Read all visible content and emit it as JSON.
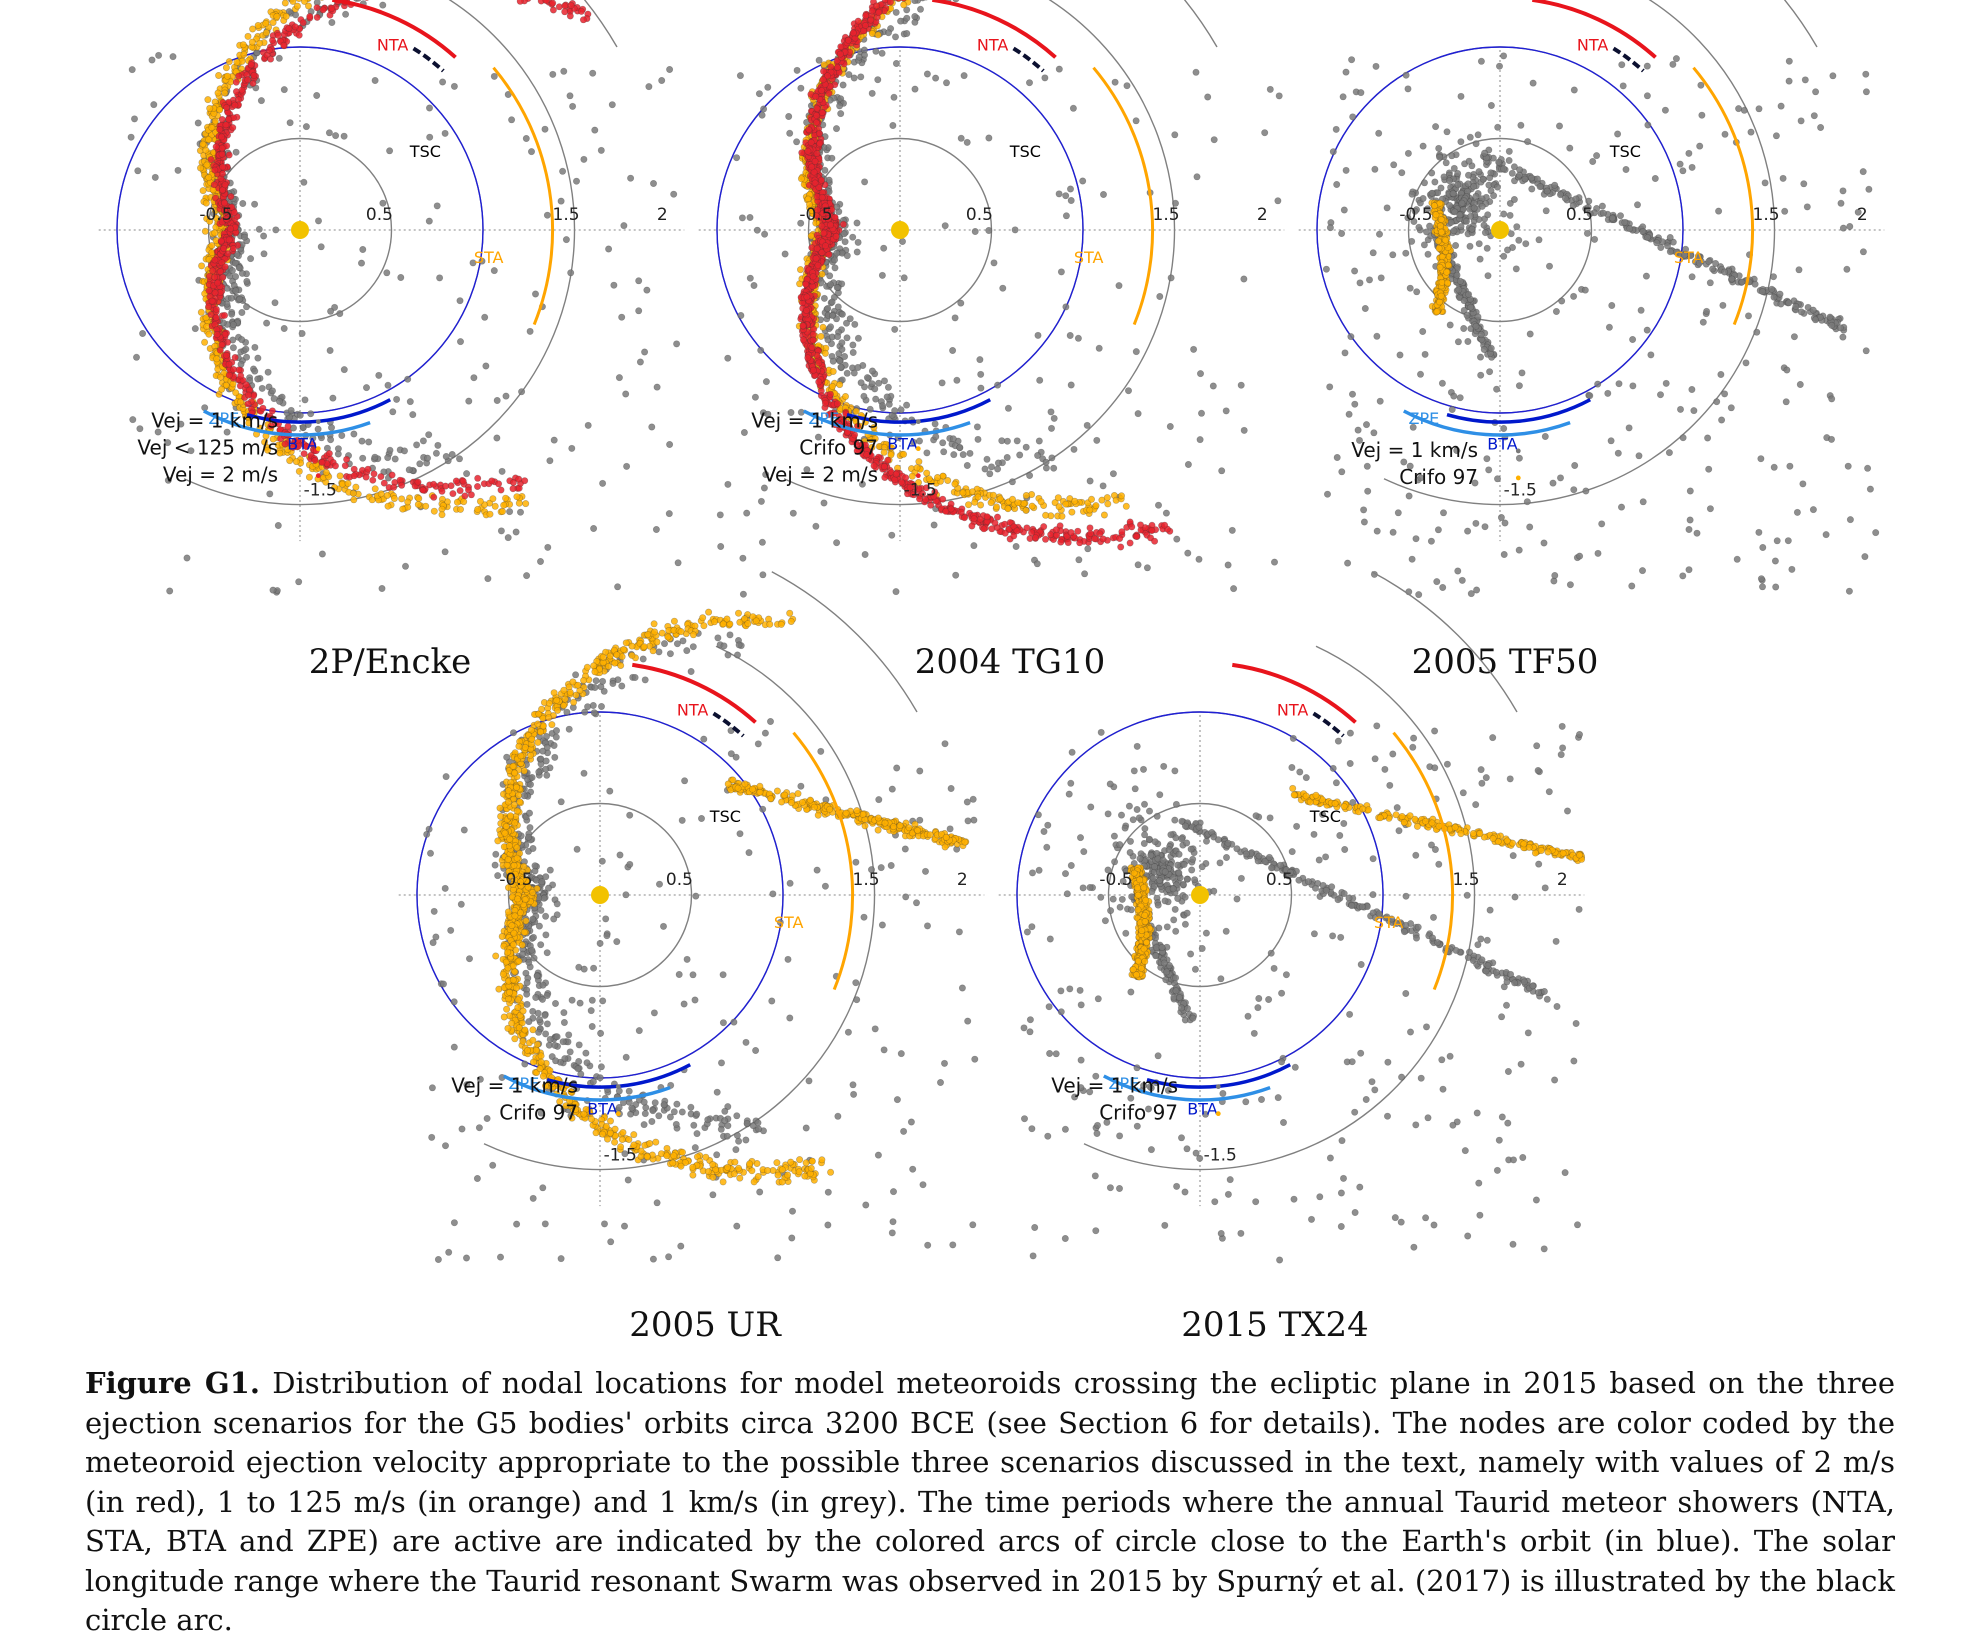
{
  "figure": {
    "label": "Figure G1.",
    "caption": "Distribution of nodal locations for model meteoroids crossing the ecliptic plane in 2015 based on the three ejection scenarios for the G5 bodies' orbits circa 3200 BCE (see Section 6 for details). The nodes are color coded by the meteoroid ejection velocity appropriate to the possible three scenarios discussed in the text, namely with values of 2 m/s (in red), 1 to 125 m/s (in orange) and 1 km/s (in grey). The time periods where the annual Taurid meteor showers (NTA, STA, BTA and ZPE) are active are indicated by the colored arcs of circle close to the Earth's orbit (in blue). The solar longitude range where the Taurid resonant Swarm was observed in 2015 by Spurný et al. (2017) is illustrated by the black circle arc."
  },
  "colors": {
    "earth_orbit": "#1f1fd6",
    "ring": "#808080",
    "nta": "#e8141c",
    "sta": "#ffa500",
    "bta": "#0018cc",
    "zpe": "#2e8fe6",
    "tsc": "#0b1030",
    "sun": "#f2c200",
    "red_points": "#e8232e",
    "orange_points": "#ffb000",
    "grey_points": "#7a7a7a"
  },
  "chart_data": [
    {
      "type": "scatter",
      "title": "2P/Encke",
      "tick_labels": [
        "-0.5",
        "0.5",
        "1.5",
        "2",
        "-1.5"
      ],
      "arc_labels": {
        "nta": "NTA",
        "sta": "STA",
        "tsc": "TSC",
        "zpe": "ZPE",
        "bta": "BTA"
      },
      "legend": [
        "Vej = 1 km/s",
        "Vej < 125 m/s",
        "Vej = 2 m/s"
      ],
      "series": [
        {
          "name": "Vej = 1 km/s",
          "color": "grey",
          "shape": "spiral-wide"
        },
        {
          "name": "Vej < 125 m/s",
          "color": "orange",
          "shape": "spiral"
        },
        {
          "name": "Vej = 2 m/s",
          "color": "red",
          "shape": "spiral"
        }
      ]
    },
    {
      "type": "scatter",
      "title": "2004 TG10",
      "tick_labels": [
        "-0.5",
        "0.5",
        "1.5",
        "2",
        "-1.5"
      ],
      "arc_labels": {
        "nta": "NTA",
        "sta": "STA",
        "tsc": "TSC",
        "zpe": "ZPE",
        "bta": "BTA"
      },
      "legend": [
        "Vej = 1 km/s",
        "Crifo 97",
        "Vej = 2 m/s"
      ],
      "series": [
        {
          "name": "Vej = 1 km/s",
          "color": "grey",
          "shape": "spiral-wide"
        },
        {
          "name": "Crifo 97",
          "color": "orange",
          "shape": "spiral"
        },
        {
          "name": "Vej = 2 m/s",
          "color": "red",
          "shape": "spiral"
        }
      ]
    },
    {
      "type": "scatter",
      "title": "2005 TF50",
      "tick_labels": [
        "-0.5",
        "0.5",
        "1.5",
        "2",
        "-1.5"
      ],
      "arc_labels": {
        "nta": "NTA",
        "sta": "STA",
        "tsc": "TSC",
        "zpe": "ZPE",
        "bta": "BTA"
      },
      "legend": [
        "Vej = 1 km/s",
        "Crifo 97"
      ],
      "series": [
        {
          "name": "Vej = 1 km/s",
          "color": "grey",
          "shape": "branch"
        },
        {
          "name": "Crifo 97",
          "color": "orange",
          "shape": "clump"
        }
      ]
    },
    {
      "type": "scatter",
      "title": "2005 UR",
      "tick_labels": [
        "-0.5",
        "0.5",
        "1.5",
        "2",
        "-1.5"
      ],
      "arc_labels": {
        "nta": "NTA",
        "sta": "STA",
        "tsc": "TSC",
        "zpe": "ZPE",
        "bta": "BTA"
      },
      "legend": [
        "Vej = 1 km/s",
        "Crifo 97"
      ],
      "series": [
        {
          "name": "Vej = 1 km/s",
          "color": "grey",
          "shape": "spiral-wide"
        },
        {
          "name": "Crifo 97",
          "color": "orange",
          "shape": "spiral"
        }
      ]
    },
    {
      "type": "scatter",
      "title": "2015 TX24",
      "tick_labels": [
        "-0.5",
        "0.5",
        "1.5",
        "2",
        "-1.5"
      ],
      "arc_labels": {
        "nta": "NTA",
        "sta": "STA",
        "tsc": "TSC",
        "zpe": "ZPE",
        "bta": "BTA"
      },
      "legend": [
        "Vej = 1 km/s",
        "Crifo 97"
      ],
      "series": [
        {
          "name": "Vej = 1 km/s",
          "color": "grey",
          "shape": "branch"
        },
        {
          "name": "Crifo 97",
          "color": "orange",
          "shape": "clump-arc"
        }
      ]
    }
  ]
}
